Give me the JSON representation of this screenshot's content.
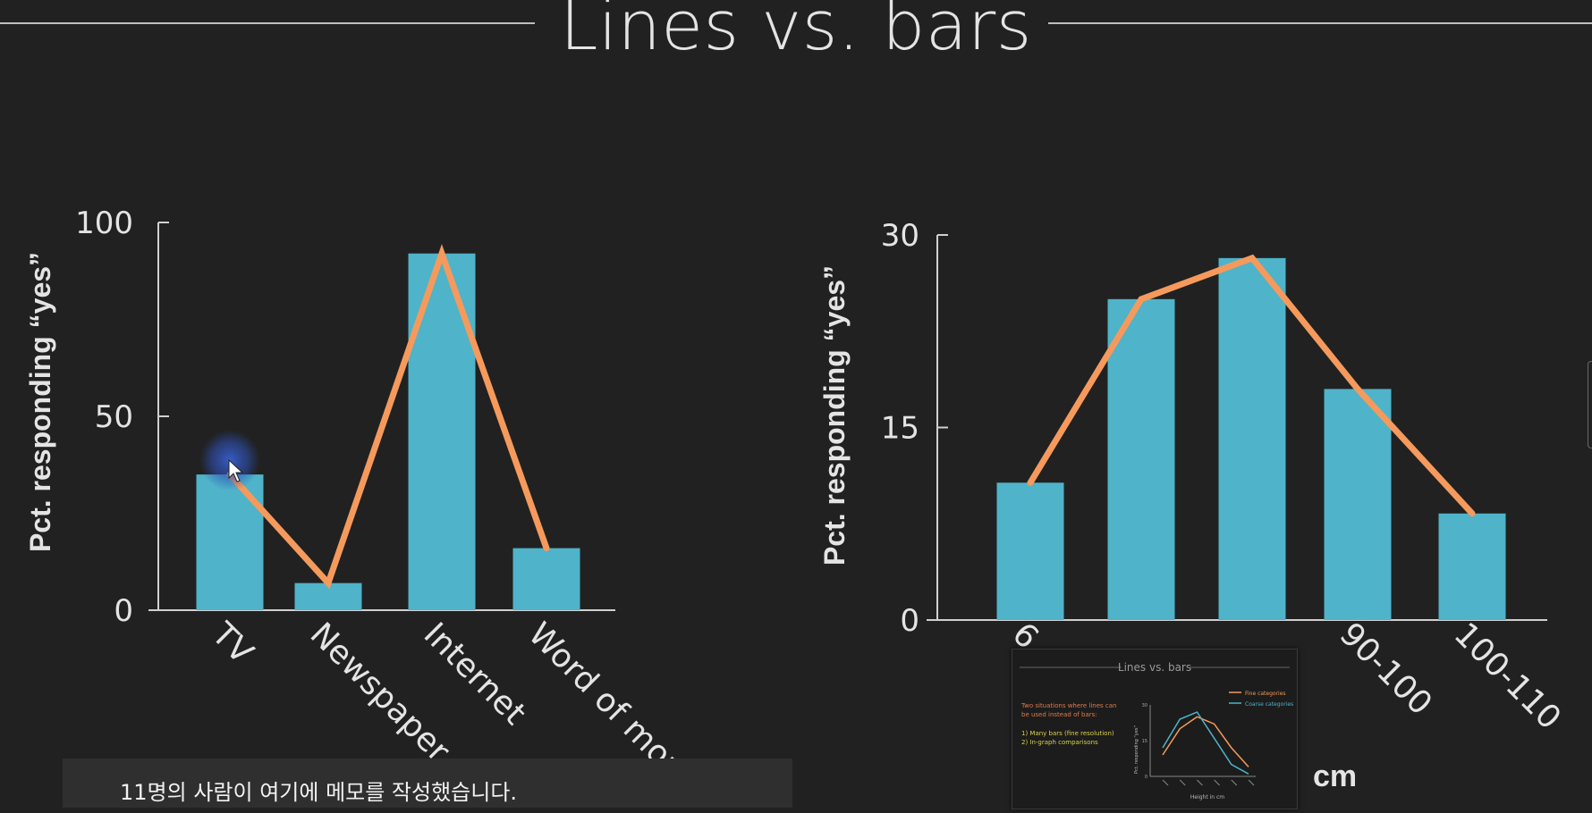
{
  "slide": {
    "title": "Lines vs. bars"
  },
  "chart_data": [
    {
      "type": "bar",
      "categories": [
        "TV",
        "Newspaper",
        "Internet",
        "Word of mou"
      ],
      "values": [
        35,
        7,
        92,
        16
      ],
      "overlay_line": [
        35,
        7,
        92,
        16
      ],
      "ylabel": "Pct. responding “yes”",
      "ylim": [
        0,
        100
      ],
      "yticks": [
        "0",
        "50",
        "100"
      ]
    },
    {
      "type": "bar",
      "categories": [
        "6",
        "",
        "",
        "90-100",
        "100-110"
      ],
      "values": [
        10.7,
        25,
        28.2,
        18,
        8.3
      ],
      "overlay_line": [
        10.7,
        25,
        28.2,
        18,
        8.3
      ],
      "ylabel": "Pct. responding “yes”",
      "ylim": [
        0,
        30
      ],
      "yticks": [
        "0",
        "15",
        "30"
      ],
      "xlabel": "cm"
    }
  ],
  "colors": {
    "background": "#212121",
    "bar": "#4fb3c9",
    "line": "#f59a5c",
    "axis": "#d0d0d0",
    "text": "#e4e4e4"
  },
  "notes_banner": {
    "text": "11명의 사람이 여기에 메모를 작성했습니다."
  },
  "thumbnail": {
    "title": "Lines vs. bars",
    "text_orange": [
      "Two situations where lines can",
      "be used instead of bars:"
    ],
    "text_yellow": [
      "1)   Many bars (fine resolution)",
      "2)   In-graph comparisons"
    ],
    "legend": [
      "Fine categories",
      "Coarse categories"
    ],
    "xlabel": "Height in cm",
    "ylabel": "Pct. responding “yes”",
    "yticks": [
      "30",
      "15",
      "0"
    ],
    "series": [
      {
        "name": "Fine categories",
        "color": "#f59a5c",
        "values": [
          9,
          20,
          25,
          22,
          12,
          4
        ]
      },
      {
        "name": "Coarse categories",
        "color": "#4fb3c9",
        "values": [
          12,
          24,
          27,
          16,
          5,
          1
        ]
      }
    ]
  },
  "icons": {
    "cursor": "mouse-pointer-icon"
  }
}
